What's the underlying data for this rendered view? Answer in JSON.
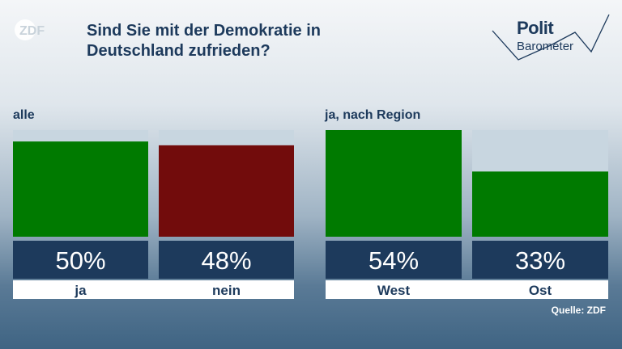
{
  "header": {
    "title_line1": "Sind Sie mit der Demokratie in",
    "title_line2": "Deutschland zufrieden?",
    "zdf_logo_text": "ZDF",
    "politbarometer_top": "Polit",
    "politbarometer_bottom": "Barometer"
  },
  "colors": {
    "green": "#007a00",
    "red": "#720c0c",
    "bar_background": "#c8d6e0",
    "value_box": "#1d3a5c",
    "value_text": "#ffffff",
    "category_text": "#1d3a5c",
    "category_background": "#ffffff"
  },
  "chart_data": [
    {
      "type": "bar",
      "title": "alle",
      "categories": [
        "ja",
        "nein"
      ],
      "values": [
        50,
        48
      ],
      "value_labels": [
        "50%",
        "48%"
      ],
      "colors": [
        "#007a00",
        "#720c0c"
      ],
      "ylim": [
        0,
        56
      ]
    },
    {
      "type": "bar",
      "title": "ja, nach Region",
      "categories": [
        "West",
        "Ost"
      ],
      "values": [
        54,
        33
      ],
      "value_labels": [
        "54%",
        "33%"
      ],
      "colors": [
        "#007a00",
        "#007a00"
      ],
      "ylim": [
        0,
        54
      ]
    }
  ],
  "footer": {
    "source": "Quelle: ZDF"
  }
}
